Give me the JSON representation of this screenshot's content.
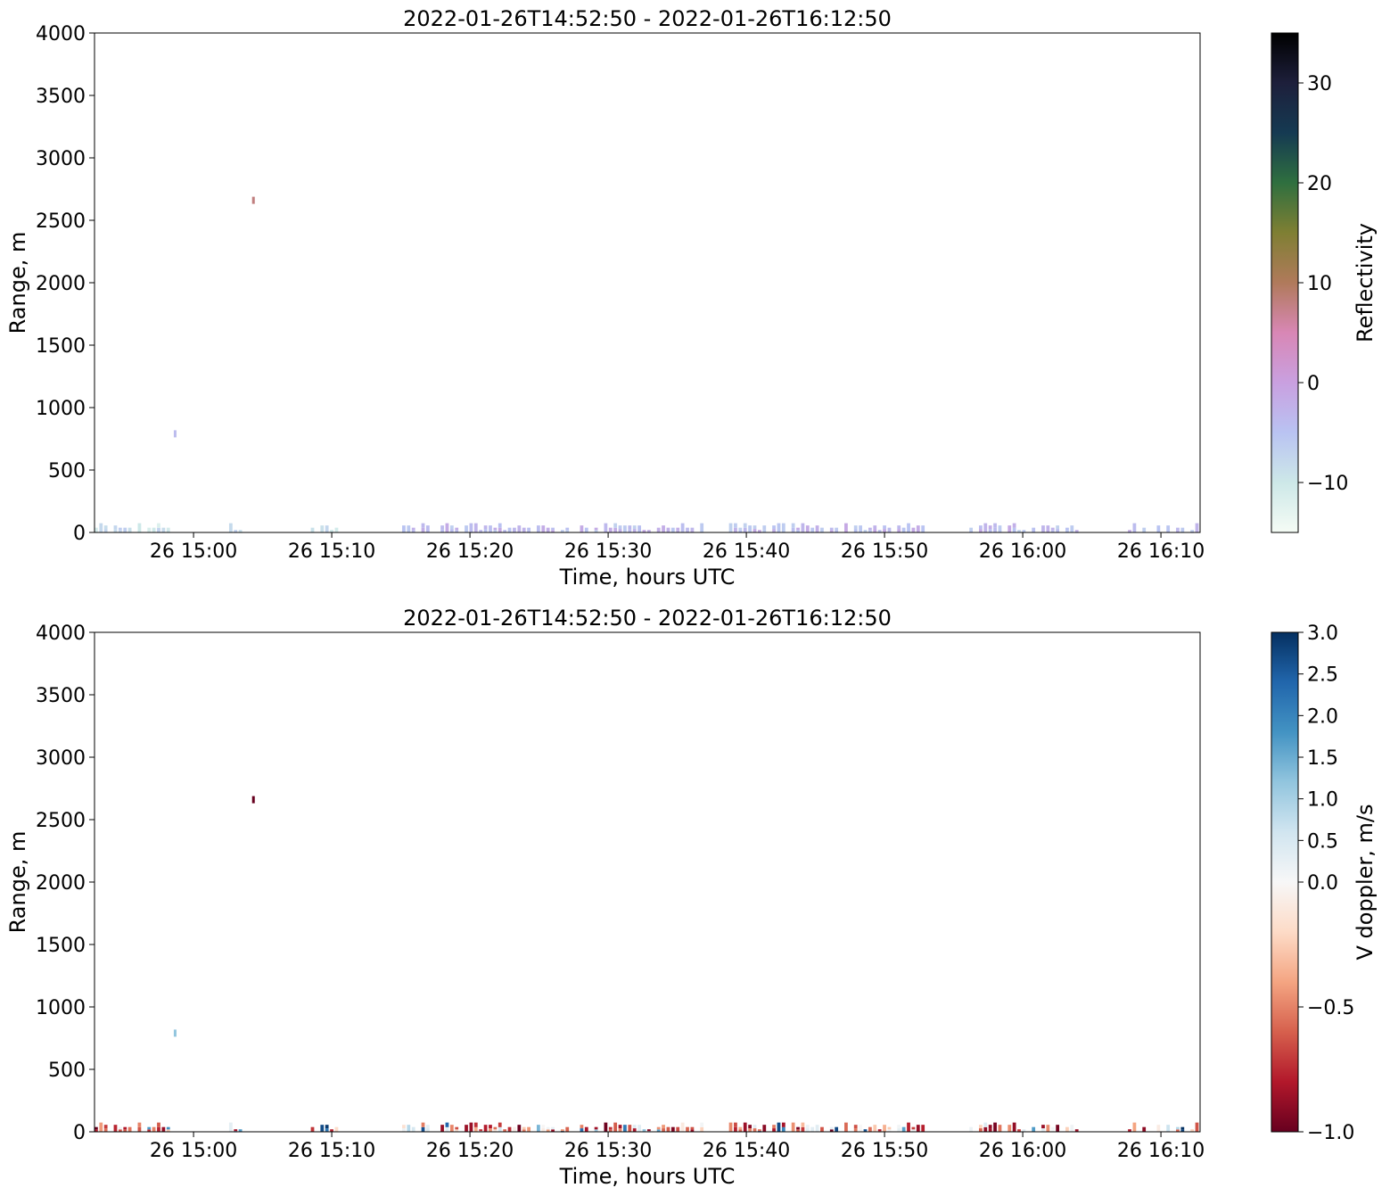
{
  "chart_data": [
    {
      "type": "heatmap",
      "title": "2022-01-26T14:52:50 - 2022-01-26T16:12:50",
      "xlabel": "Time, hours UTC",
      "ylabel": "Range, m",
      "xlim": [
        "2022-01-26 14:52:50",
        "2022-01-26 16:12:50"
      ],
      "ylim": [
        0,
        4000
      ],
      "x_ticks": [
        "26 15:00",
        "26 15:10",
        "26 15:20",
        "26 15:30",
        "26 15:40",
        "26 15:50",
        "26 16:00",
        "26 16:10"
      ],
      "y_ticks": [
        0,
        500,
        1000,
        1500,
        2000,
        2500,
        3000,
        3500,
        4000
      ],
      "colorbar": {
        "label": "Reflectivity",
        "range": [
          -15,
          35
        ],
        "ticks": [
          -10,
          0,
          10,
          20,
          30
        ],
        "tick_labels": [
          "−10",
          "0",
          "10",
          "20",
          "30"
        ],
        "colormap": "cubehelix_r",
        "stops": [
          "#f5fcf5",
          "#cde8e8",
          "#b9c3f2",
          "#c9a0e0",
          "#d887b5",
          "#b07a5b",
          "#7f7f33",
          "#2f6f3f",
          "#153a52",
          "#1d1f3b",
          "#000000"
        ]
      },
      "features": [
        {
          "time": "2022-01-26 14:58:40",
          "range": 790,
          "value": -4
        },
        {
          "time": "2022-01-26 15:04:20",
          "range": 2660,
          "value": 8
        }
      ],
      "near_surface_band": {
        "range_max": 75,
        "value_range": [
          -12,
          0
        ]
      }
    },
    {
      "type": "heatmap",
      "title": "2022-01-26T14:52:50 - 2022-01-26T16:12:50",
      "xlabel": "Time, hours UTC",
      "ylabel": "Range, m",
      "xlim": [
        "2022-01-26 14:52:50",
        "2022-01-26 16:12:50"
      ],
      "ylim": [
        0,
        4000
      ],
      "x_ticks": [
        "26 15:00",
        "26 15:10",
        "26 15:20",
        "26 15:30",
        "26 15:40",
        "26 15:50",
        "26 16:00",
        "26 16:10"
      ],
      "y_ticks": [
        0,
        500,
        1000,
        1500,
        2000,
        2500,
        3000,
        3500,
        4000
      ],
      "colorbar": {
        "label": "V doppler, m/s",
        "range": [
          -1.0,
          3.0
        ],
        "ticks": [
          -1.0,
          -0.5,
          0.0,
          0.5,
          1.0,
          1.5,
          2.0,
          2.5,
          3.0
        ],
        "tick_labels": [
          "−1.0",
          "−0.5",
          "0.0",
          "0.5",
          "1.0",
          "1.5",
          "2.0",
          "2.5",
          "3.0"
        ],
        "colormap": "RdBu (two-slope, center 0)",
        "stops": [
          "#67001f",
          "#b2182b",
          "#d6604d",
          "#f4a582",
          "#fddbc7",
          "#f7f7f7",
          "#d1e5f0",
          "#92c5de",
          "#4393c3",
          "#2166ac",
          "#053061"
        ]
      },
      "features": [
        {
          "time": "2022-01-26 14:58:40",
          "range": 790,
          "value": 1.2
        },
        {
          "time": "2022-01-26 15:04:20",
          "range": 2660,
          "value": -1.0
        }
      ],
      "near_surface_band": {
        "range_max": 75,
        "value_range": [
          -1.0,
          3.0
        ]
      }
    }
  ]
}
